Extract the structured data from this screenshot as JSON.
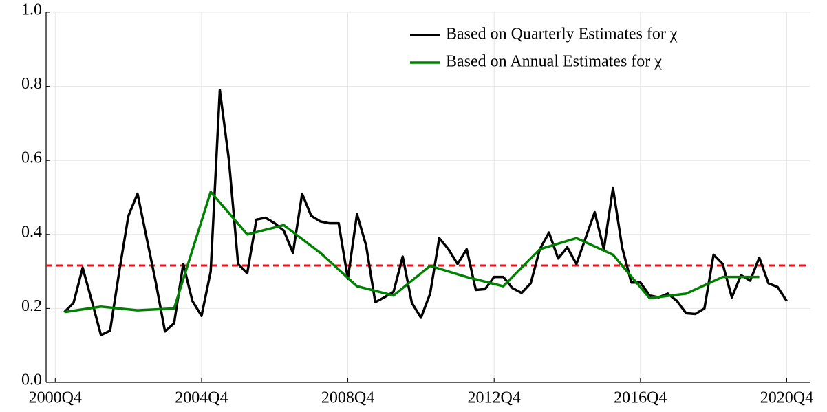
{
  "chart_data": {
    "type": "line",
    "x": [
      2001.0,
      2001.25,
      2001.5,
      2001.75,
      2002.0,
      2002.25,
      2002.5,
      2002.75,
      2003.0,
      2003.25,
      2003.5,
      2003.75,
      2004.0,
      2004.25,
      2004.5,
      2004.75,
      2005.0,
      2005.25,
      2005.5,
      2005.75,
      2006.0,
      2006.25,
      2006.5,
      2006.75,
      2007.0,
      2007.25,
      2007.5,
      2007.75,
      2008.0,
      2008.25,
      2008.5,
      2008.75,
      2009.0,
      2009.25,
      2009.5,
      2009.75,
      2010.0,
      2010.25,
      2010.5,
      2010.75,
      2011.0,
      2011.25,
      2011.5,
      2011.75,
      2012.0,
      2012.25,
      2012.5,
      2012.75,
      2013.0,
      2013.25,
      2013.5,
      2013.75,
      2014.0,
      2014.25,
      2014.5,
      2014.75,
      2015.0,
      2015.25,
      2015.5,
      2015.75,
      2016.0,
      2016.25,
      2016.5,
      2016.75,
      2017.0,
      2017.25,
      2017.5,
      2017.75,
      2018.0,
      2018.25,
      2018.5,
      2018.75,
      2019.0,
      2019.25,
      2019.5,
      2019.75,
      2020.0,
      2020.25,
      2020.5,
      2020.75
    ],
    "series": [
      {
        "name": "Based on Quarterly Estimates for χ",
        "color": "#000000",
        "values": [
          0.19,
          0.215,
          0.31,
          0.22,
          0.128,
          0.14,
          0.3,
          0.45,
          0.51,
          0.39,
          0.27,
          0.138,
          0.16,
          0.32,
          0.22,
          0.18,
          0.3,
          0.79,
          0.6,
          0.32,
          0.295,
          0.44,
          0.445,
          0.43,
          0.41,
          0.35,
          0.51,
          0.45,
          0.435,
          0.43,
          0.43,
          0.28,
          0.455,
          0.37,
          0.217,
          0.23,
          0.245,
          0.34,
          0.215,
          0.175,
          0.24,
          0.39,
          0.36,
          0.32,
          0.36,
          0.25,
          0.252,
          0.285,
          0.285,
          0.255,
          0.242,
          0.268,
          0.36,
          0.405,
          0.335,
          0.365,
          0.32,
          0.39,
          0.46,
          0.36,
          0.525,
          0.365,
          0.27,
          0.27,
          0.235,
          0.23,
          0.24,
          0.22,
          0.187,
          0.185,
          0.2,
          0.345,
          0.32,
          0.23,
          0.29,
          0.275,
          0.337,
          0.268,
          0.258,
          0.22
        ]
      },
      {
        "name": "Based on Annual Estimates for χ",
        "color": "#008000",
        "x": [
          2001.0,
          2002.0,
          2003.0,
          2004.0,
          2005.0,
          2006.0,
          2007.0,
          2008.0,
          2009.0,
          2010.0,
          2011.0,
          2012.0,
          2013.0,
          2014.0,
          2015.0,
          2016.0,
          2017.0,
          2018.0,
          2019.0,
          2020.0
        ],
        "values": [
          0.19,
          0.205,
          0.195,
          0.2,
          0.515,
          0.4,
          0.425,
          0.35,
          0.26,
          0.235,
          0.315,
          0.285,
          0.26,
          0.36,
          0.39,
          0.345,
          0.228,
          0.24,
          0.285,
          0.285
        ]
      }
    ],
    "reference_line": {
      "value": 0.316,
      "color": "#e8141b"
    },
    "xlim": [
      2000.5,
      2021.4
    ],
    "xticks": [
      {
        "value": 2000.75,
        "label": "2000Q4"
      },
      {
        "value": 2004.75,
        "label": "2004Q4"
      },
      {
        "value": 2008.75,
        "label": "2008Q4"
      },
      {
        "value": 2012.75,
        "label": "2012Q4"
      },
      {
        "value": 2016.75,
        "label": "2016Q4"
      },
      {
        "value": 2020.75,
        "label": "2020Q4"
      }
    ],
    "ylim": [
      0,
      1
    ],
    "yticks": [
      {
        "value": 0,
        "label": "0.0"
      },
      0.2,
      0.4,
      0.6,
      0.8,
      {
        "value": 1,
        "label": "1.0"
      }
    ],
    "grid": true,
    "legend": "top-right"
  }
}
